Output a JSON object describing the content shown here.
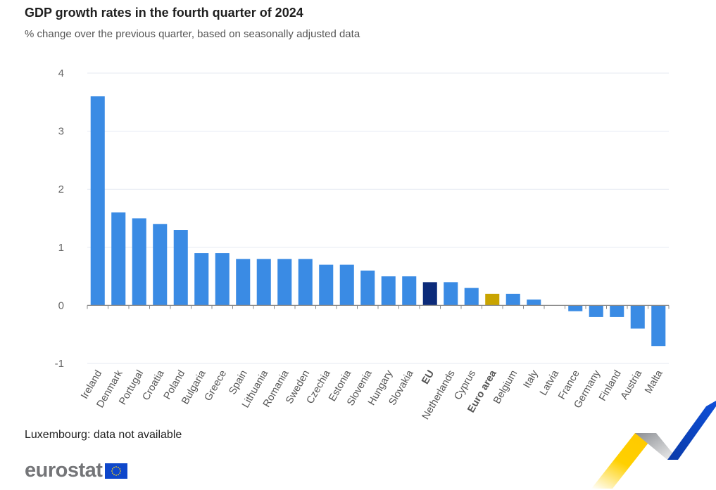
{
  "header": {
    "title": "GDP growth rates in the fourth quarter of 2024",
    "subtitle": "% change over the previous quarter, based on seasonally adjusted data"
  },
  "footer": {
    "note": "Luxembourg: data not available",
    "logo_text": "eurostat"
  },
  "colors": {
    "country": "#3a8be4",
    "eu": "#0c2b7a",
    "euro_area": "#c9a400",
    "grid": "#e6eaf2",
    "axis": "#888888",
    "label": "#555555"
  },
  "chart_data": {
    "type": "bar",
    "title": "GDP growth rates in the fourth quarter of 2024",
    "subtitle": "% change over the previous quarter, based on seasonally adjusted data",
    "xlabel": "",
    "ylabel": "",
    "ylim": [
      -1,
      4
    ],
    "yticks": [
      -1,
      0,
      1,
      2,
      3,
      4
    ],
    "grid": true,
    "categories": [
      "Ireland",
      "Denmark",
      "Portugal",
      "Croatia",
      "Poland",
      "Bulgaria",
      "Greece",
      "Spain",
      "Lithuania",
      "Romania",
      "Sweden",
      "Czechia",
      "Estonia",
      "Slovenia",
      "Hungary",
      "Slovakia",
      "EU",
      "Netherlands",
      "Cyprus",
      "Euro area",
      "Belgium",
      "Italy",
      "Latvia",
      "France",
      "Germany",
      "Finland",
      "Austria",
      "Malta"
    ],
    "values": [
      3.6,
      1.6,
      1.5,
      1.4,
      1.3,
      0.9,
      0.9,
      0.8,
      0.8,
      0.8,
      0.8,
      0.7,
      0.7,
      0.6,
      0.5,
      0.5,
      0.4,
      0.4,
      0.3,
      0.2,
      0.2,
      0.1,
      0.0,
      -0.1,
      -0.2,
      -0.2,
      -0.4,
      -0.7
    ],
    "highlight": {
      "EU": "eu",
      "Euro area": "euro_area"
    },
    "annotations": [
      "Luxembourg: data not available"
    ]
  }
}
